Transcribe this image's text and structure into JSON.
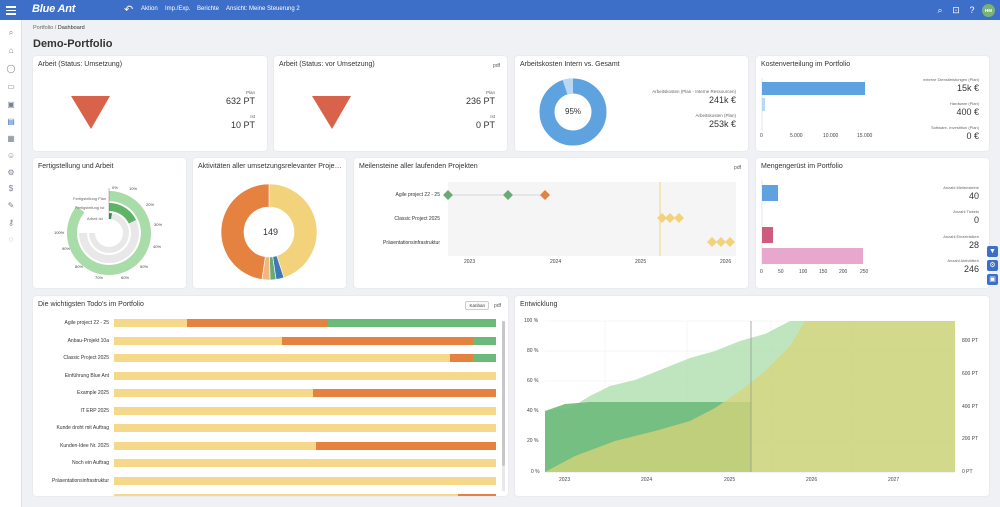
{
  "topbar": {
    "logo": "Blue Ant",
    "nav": [
      "Aktion",
      "Imp./Exp.",
      "Berichte",
      "Ansicht: Meine Steuerung 2"
    ],
    "avatar_initials": "HM",
    "color": "#3d6fc9"
  },
  "breadcrumb": {
    "root": "Portfolio",
    "sep": "/",
    "current": "Dashboard"
  },
  "page_title": "Demo-Portfolio",
  "cards": {
    "arbeit_umsetzung": {
      "title": "Arbeit (Status: Umsetzung)",
      "plan_label": "Plan",
      "plan_value": "632 PT",
      "ist_label": "Ist",
      "ist_value": "10 PT",
      "triangle_color": "#d9634a"
    },
    "arbeit_vor_umsetzung": {
      "title": "Arbeit (Status: vor Umsetzung)",
      "pdf": "pdf",
      "plan_label": "Plan",
      "plan_value": "236 PT",
      "ist_label": "Ist",
      "ist_value": "0 PT",
      "triangle_color": "#d9634a"
    },
    "arbeitskosten": {
      "title": "Arbeitskosten Intern vs. Gesamt",
      "center": "95%",
      "label1": "Arbeitskosten (Plan - Interne Ressourcen)",
      "value1": "241k €",
      "label2": "Arbeitskosten (Plan)",
      "value2": "253k €",
      "share": 0.95
    },
    "kostenverteilung": {
      "title": "Kostenverteilung im Portfolio",
      "items": [
        {
          "label": "externe Dienstleistungen (Plan)",
          "value": "15k €",
          "num": 15000
        },
        {
          "label": "Hardware (Plan)",
          "value": "400 €",
          "num": 400
        },
        {
          "label": "Software- Investition (Plan)",
          "value": "0 €",
          "num": 0
        }
      ],
      "ticks": [
        "0",
        "5.000",
        "10.000",
        "15.000"
      ]
    },
    "fertigstellung": {
      "title": "Fertigstellung und Arbeit",
      "legend": [
        "Fertigstellung Plan",
        "Fertigstellung Ist",
        "Arbeit Ist"
      ],
      "ticks": [
        "0%",
        "10%",
        "20%",
        "30%",
        "40%",
        "50%",
        "60%",
        "70%",
        "80%",
        "90%",
        "100%"
      ],
      "values": [
        0.9,
        0.18,
        0.02
      ]
    },
    "aktivitaeten": {
      "title": "Aktivitäten aller umsetzungsrelevanter Proje…",
      "center": "149",
      "segments": [
        {
          "value": 67,
          "color": "#f2d37c"
        },
        {
          "value": 4,
          "color": "#3f79b8"
        },
        {
          "value": 3,
          "color": "#6aab74"
        },
        {
          "value": 4,
          "color": "#f0b87e"
        },
        {
          "value": 71,
          "color": "#e5823f"
        }
      ]
    },
    "meilensteine": {
      "title": "Meilensteine aller laufenden Projekten",
      "pdf": "pdf",
      "projects": [
        "Agile project 22 - 25",
        "Classic Project 2025",
        "Präsentationsinfrastruktur"
      ],
      "years": [
        "2023",
        "2024",
        "2025",
        "2026"
      ]
    },
    "mengengeruest": {
      "title": "Mengengerüst im Portfolio",
      "items": [
        {
          "label": "Anzahl Meilensteine",
          "value": "40",
          "num": 40,
          "color": "#5ea2e0"
        },
        {
          "label": "Anzahl Tickets",
          "value": "0",
          "num": 0,
          "color": "#bbb"
        },
        {
          "label": "Anzahl Einzelrisiken",
          "value": "28",
          "num": 28,
          "color": "#cf5c7c"
        },
        {
          "label": "Anzahl Aktivitäten",
          "value": "246",
          "num": 246,
          "color": "#e8a8cd"
        }
      ],
      "ticks": [
        "0",
        "50",
        "100",
        "150",
        "200",
        "250"
      ]
    },
    "todos": {
      "title": "Die wichtigsten Todo's im Portfolio",
      "kanban": "Kanban",
      "pdf": "pdf",
      "rows": [
        {
          "name": "Agile project 22 - 25",
          "seg": [
            0.19,
            0.37,
            0.44
          ]
        },
        {
          "name": "Anbau-Projekt 10a",
          "seg": [
            0.44,
            0.5,
            0.06
          ]
        },
        {
          "name": "Classic Project 2025",
          "seg": [
            0.88,
            0.06,
            0.06
          ]
        },
        {
          "name": "Einführung Blue Ant",
          "seg": [
            1.0,
            0,
            0
          ]
        },
        {
          "name": "Example 2025",
          "seg": [
            0.52,
            0.48,
            0
          ]
        },
        {
          "name": "IT ERP 2025",
          "seg": [
            1.0,
            0,
            0
          ]
        },
        {
          "name": "Kunde droht mit Auftrag",
          "seg": [
            1.0,
            0,
            0
          ]
        },
        {
          "name": "Kunden-Idee Nr. 2025",
          "seg": [
            0.53,
            0.47,
            0
          ]
        },
        {
          "name": "Noch ein Auftrag",
          "seg": [
            1.0,
            0,
            0
          ]
        },
        {
          "name": "Präsentationsinfrastruktur",
          "seg": [
            1.0,
            0,
            0
          ]
        },
        {
          "name": "",
          "seg": [
            0.9,
            0.1,
            0
          ]
        }
      ],
      "colors": [
        "#f5d88a",
        "#e5823f",
        "#6cba7a"
      ]
    },
    "entwicklung": {
      "title": "Entwicklung",
      "y_left": [
        "100 %",
        "80 %",
        "60 %",
        "40 %",
        "20 %",
        "0 %"
      ],
      "y_right": [
        "800 PT",
        "600 PT",
        "400 PT",
        "200 PT",
        "0 PT"
      ],
      "x": [
        "2023",
        "2024",
        "2025",
        "2026",
        "2027"
      ]
    }
  }
}
